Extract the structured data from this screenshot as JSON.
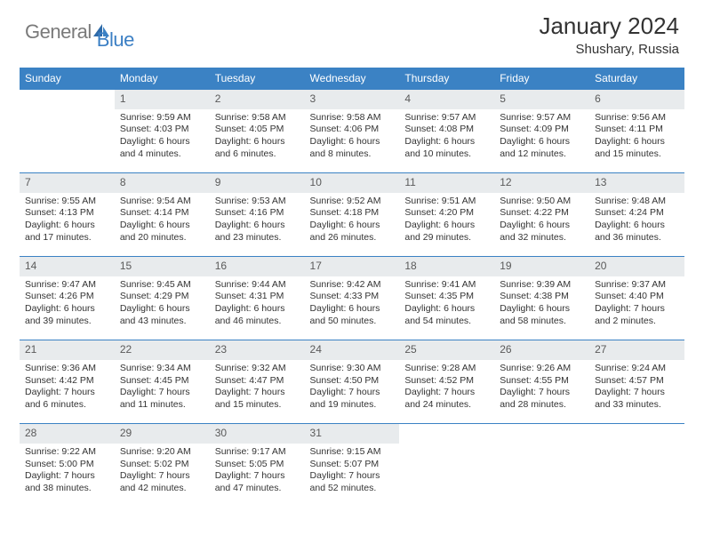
{
  "logo": {
    "text1": "General",
    "text2": "Blue"
  },
  "title": "January 2024",
  "location": "Shushary, Russia",
  "colors": {
    "header_bg": "#3b82c4",
    "header_text": "#ffffff",
    "daynum_bg": "#e8ebed",
    "daynum_text": "#5a5a5a",
    "body_text": "#333333",
    "logo_gray": "#7a7a7a",
    "logo_blue": "#3b7fc4",
    "border": "#3b82c4"
  },
  "weekdays": [
    "Sunday",
    "Monday",
    "Tuesday",
    "Wednesday",
    "Thursday",
    "Friday",
    "Saturday"
  ],
  "grid": [
    [
      null,
      {
        "n": "1",
        "sr": "9:59 AM",
        "ss": "4:03 PM",
        "dl": "6 hours and 4 minutes."
      },
      {
        "n": "2",
        "sr": "9:58 AM",
        "ss": "4:05 PM",
        "dl": "6 hours and 6 minutes."
      },
      {
        "n": "3",
        "sr": "9:58 AM",
        "ss": "4:06 PM",
        "dl": "6 hours and 8 minutes."
      },
      {
        "n": "4",
        "sr": "9:57 AM",
        "ss": "4:08 PM",
        "dl": "6 hours and 10 minutes."
      },
      {
        "n": "5",
        "sr": "9:57 AM",
        "ss": "4:09 PM",
        "dl": "6 hours and 12 minutes."
      },
      {
        "n": "6",
        "sr": "9:56 AM",
        "ss": "4:11 PM",
        "dl": "6 hours and 15 minutes."
      }
    ],
    [
      {
        "n": "7",
        "sr": "9:55 AM",
        "ss": "4:13 PM",
        "dl": "6 hours and 17 minutes."
      },
      {
        "n": "8",
        "sr": "9:54 AM",
        "ss": "4:14 PM",
        "dl": "6 hours and 20 minutes."
      },
      {
        "n": "9",
        "sr": "9:53 AM",
        "ss": "4:16 PM",
        "dl": "6 hours and 23 minutes."
      },
      {
        "n": "10",
        "sr": "9:52 AM",
        "ss": "4:18 PM",
        "dl": "6 hours and 26 minutes."
      },
      {
        "n": "11",
        "sr": "9:51 AM",
        "ss": "4:20 PM",
        "dl": "6 hours and 29 minutes."
      },
      {
        "n": "12",
        "sr": "9:50 AM",
        "ss": "4:22 PM",
        "dl": "6 hours and 32 minutes."
      },
      {
        "n": "13",
        "sr": "9:48 AM",
        "ss": "4:24 PM",
        "dl": "6 hours and 36 minutes."
      }
    ],
    [
      {
        "n": "14",
        "sr": "9:47 AM",
        "ss": "4:26 PM",
        "dl": "6 hours and 39 minutes."
      },
      {
        "n": "15",
        "sr": "9:45 AM",
        "ss": "4:29 PM",
        "dl": "6 hours and 43 minutes."
      },
      {
        "n": "16",
        "sr": "9:44 AM",
        "ss": "4:31 PM",
        "dl": "6 hours and 46 minutes."
      },
      {
        "n": "17",
        "sr": "9:42 AM",
        "ss": "4:33 PM",
        "dl": "6 hours and 50 minutes."
      },
      {
        "n": "18",
        "sr": "9:41 AM",
        "ss": "4:35 PM",
        "dl": "6 hours and 54 minutes."
      },
      {
        "n": "19",
        "sr": "9:39 AM",
        "ss": "4:38 PM",
        "dl": "6 hours and 58 minutes."
      },
      {
        "n": "20",
        "sr": "9:37 AM",
        "ss": "4:40 PM",
        "dl": "7 hours and 2 minutes."
      }
    ],
    [
      {
        "n": "21",
        "sr": "9:36 AM",
        "ss": "4:42 PM",
        "dl": "7 hours and 6 minutes."
      },
      {
        "n": "22",
        "sr": "9:34 AM",
        "ss": "4:45 PM",
        "dl": "7 hours and 11 minutes."
      },
      {
        "n": "23",
        "sr": "9:32 AM",
        "ss": "4:47 PM",
        "dl": "7 hours and 15 minutes."
      },
      {
        "n": "24",
        "sr": "9:30 AM",
        "ss": "4:50 PM",
        "dl": "7 hours and 19 minutes."
      },
      {
        "n": "25",
        "sr": "9:28 AM",
        "ss": "4:52 PM",
        "dl": "7 hours and 24 minutes."
      },
      {
        "n": "26",
        "sr": "9:26 AM",
        "ss": "4:55 PM",
        "dl": "7 hours and 28 minutes."
      },
      {
        "n": "27",
        "sr": "9:24 AM",
        "ss": "4:57 PM",
        "dl": "7 hours and 33 minutes."
      }
    ],
    [
      {
        "n": "28",
        "sr": "9:22 AM",
        "ss": "5:00 PM",
        "dl": "7 hours and 38 minutes."
      },
      {
        "n": "29",
        "sr": "9:20 AM",
        "ss": "5:02 PM",
        "dl": "7 hours and 42 minutes."
      },
      {
        "n": "30",
        "sr": "9:17 AM",
        "ss": "5:05 PM",
        "dl": "7 hours and 47 minutes."
      },
      {
        "n": "31",
        "sr": "9:15 AM",
        "ss": "5:07 PM",
        "dl": "7 hours and 52 minutes."
      },
      null,
      null,
      null
    ]
  ],
  "labels": {
    "sunrise": "Sunrise:",
    "sunset": "Sunset:",
    "daylight": "Daylight:"
  }
}
